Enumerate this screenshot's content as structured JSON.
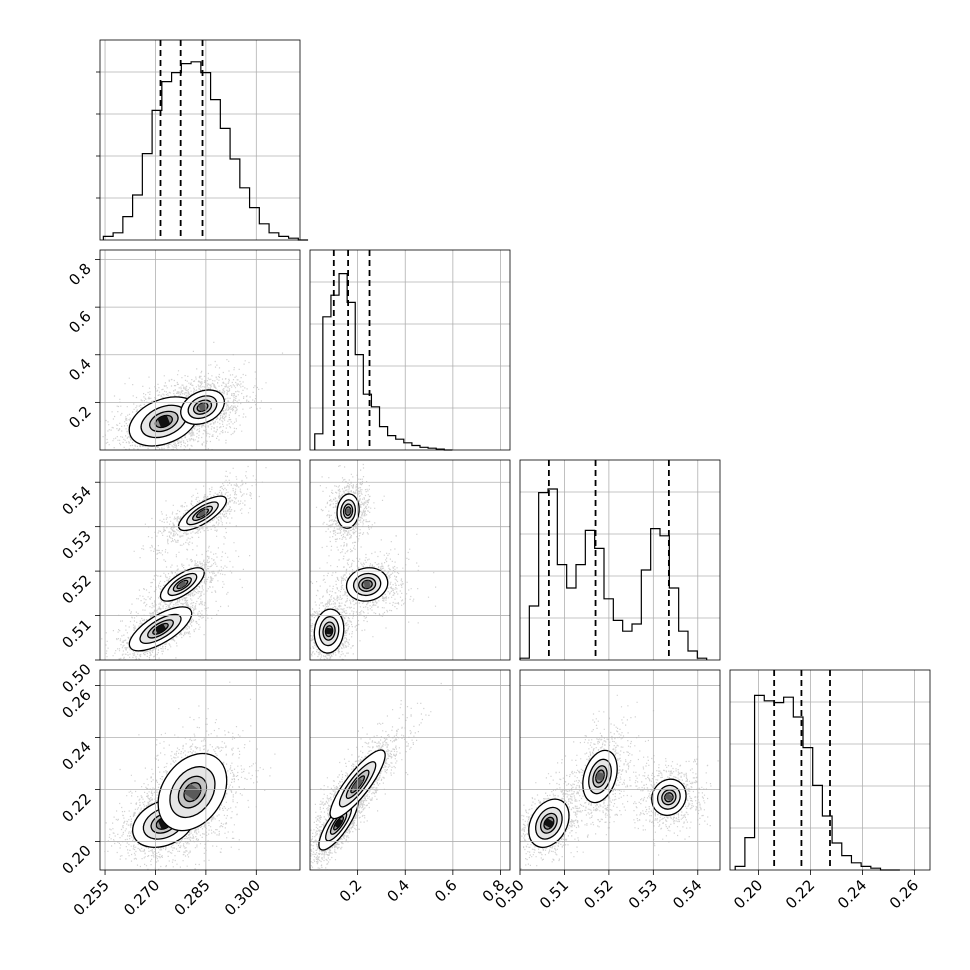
{
  "chart_data": {
    "type": "corner",
    "grid": true,
    "parameters": [
      {
        "index": 0,
        "range": [
          0.2535,
          0.313
        ],
        "ticks": [
          0.255,
          0.27,
          0.285,
          0.3
        ],
        "tick_labels": [
          "0.255",
          "0.270",
          "0.285",
          "0.300"
        ],
        "quantiles": [
          0.2715,
          0.2775,
          0.284
        ],
        "histogram": {
          "edges_start": 0.2545,
          "bin_width": 0.0029,
          "counts": [
            0.02,
            0.04,
            0.13,
            0.25,
            0.48,
            0.72,
            0.88,
            0.93,
            0.98,
            0.99,
            0.93,
            0.78,
            0.62,
            0.45,
            0.29,
            0.18,
            0.09,
            0.04,
            0.02,
            0.01,
            0.0
          ]
        }
      },
      {
        "index": 1,
        "range": [
          0.0,
          0.84
        ],
        "ticks": [
          0.2,
          0.4,
          0.6,
          0.8
        ],
        "tick_labels": [
          "0.2",
          "0.4",
          "0.6",
          "0.8"
        ],
        "left_tick_labels": [
          "0.2",
          "0.4",
          "0.6",
          "0.8"
        ],
        "quantiles": [
          0.1,
          0.16,
          0.25
        ],
        "histogram": {
          "edges_start": 0.02,
          "bin_width": 0.034,
          "counts": [
            0.09,
            0.74,
            0.86,
            0.98,
            0.82,
            0.53,
            0.31,
            0.24,
            0.13,
            0.08,
            0.06,
            0.04,
            0.025,
            0.015,
            0.01,
            0.005,
            0.0
          ]
        }
      },
      {
        "index": 2,
        "range": [
          0.5,
          0.545
        ],
        "ticks": [
          0.5,
          0.51,
          0.52,
          0.53,
          0.54
        ],
        "tick_labels": [
          "0.50",
          "0.51",
          "0.52",
          "0.53",
          "0.54"
        ],
        "left_tick_labels": [
          "0.50",
          "0.51",
          "0.52",
          "0.53",
          "0.54"
        ],
        "quantiles": [
          0.5065,
          0.517,
          0.5335
        ],
        "histogram": {
          "edges_start": 0.5,
          "bin_width": 0.0021,
          "counts": [
            0.01,
            0.3,
            0.93,
            0.95,
            0.53,
            0.4,
            0.53,
            0.72,
            0.62,
            0.34,
            0.22,
            0.16,
            0.2,
            0.5,
            0.73,
            0.69,
            0.4,
            0.16,
            0.05,
            0.01
          ]
        }
      },
      {
        "index": 3,
        "range": [
          0.189,
          0.266
        ],
        "ticks": [
          0.2,
          0.22,
          0.24,
          0.26
        ],
        "tick_labels": [
          "0.20",
          "0.22",
          "0.24",
          "0.26"
        ],
        "left_tick_labels": [
          "0.20",
          "0.22",
          "0.24",
          "0.26"
        ],
        "quantiles": [
          0.206,
          0.2165,
          0.2275
        ],
        "histogram": {
          "edges_start": 0.191,
          "bin_width": 0.00373,
          "counts": [
            0.02,
            0.18,
            0.97,
            0.94,
            0.93,
            0.96,
            0.85,
            0.68,
            0.47,
            0.3,
            0.15,
            0.08,
            0.04,
            0.02,
            0.01,
            0.0,
            0.0
          ]
        }
      }
    ],
    "pairs": [
      {
        "x": 0,
        "y": 1,
        "modes": [
          {
            "cx": 0.2725,
            "cy": 0.12,
            "sx": 0.005,
            "sy": 0.05,
            "rho": 0.35,
            "w": 1.0
          },
          {
            "cx": 0.284,
            "cy": 0.18,
            "sx": 0.0045,
            "sy": 0.05,
            "rho": 0.3,
            "w": 0.7
          }
        ]
      },
      {
        "x": 0,
        "y": 2,
        "modes": [
          {
            "cx": 0.2715,
            "cy": 0.507,
            "sx": 0.0045,
            "sy": 0.0024,
            "rho": 0.7,
            "w": 1.0
          },
          {
            "cx": 0.278,
            "cy": 0.517,
            "sx": 0.0045,
            "sy": 0.0026,
            "rho": 0.7,
            "w": 0.7
          },
          {
            "cx": 0.284,
            "cy": 0.533,
            "sx": 0.0046,
            "sy": 0.0025,
            "rho": 0.75,
            "w": 0.75
          }
        ]
      },
      {
        "x": 1,
        "y": 2,
        "modes": [
          {
            "cx": 0.08,
            "cy": 0.5065,
            "sx": 0.03,
            "sy": 0.0024,
            "rho": 0.1,
            "w": 1.0
          },
          {
            "cx": 0.24,
            "cy": 0.517,
            "sx": 0.06,
            "sy": 0.0026,
            "rho": 0.1,
            "w": 0.7
          },
          {
            "cx": 0.16,
            "cy": 0.5335,
            "sx": 0.03,
            "sy": 0.0025,
            "rho": 0.1,
            "w": 0.75
          }
        ]
      },
      {
        "x": 0,
        "y": 3,
        "modes": [
          {
            "cx": 0.2725,
            "cy": 0.207,
            "sx": 0.0045,
            "sy": 0.0045,
            "rho": 0.3,
            "w": 1.0
          },
          {
            "cx": 0.281,
            "cy": 0.219,
            "sx": 0.0055,
            "sy": 0.008,
            "rho": 0.3,
            "w": 0.9
          }
        ]
      },
      {
        "x": 1,
        "y": 3,
        "modes": [
          {
            "cx": 0.12,
            "cy": 0.207,
            "sx": 0.04,
            "sy": 0.005,
            "rho": 0.8,
            "w": 1.0
          },
          {
            "cx": 0.2,
            "cy": 0.222,
            "sx": 0.07,
            "sy": 0.008,
            "rho": 0.85,
            "w": 0.8
          }
        ]
      },
      {
        "x": 2,
        "y": 3,
        "modes": [
          {
            "cx": 0.5065,
            "cy": 0.207,
            "sx": 0.0022,
            "sy": 0.0045,
            "rho": 0.3,
            "w": 1.0
          },
          {
            "cx": 0.518,
            "cy": 0.225,
            "sx": 0.0025,
            "sy": 0.0065,
            "rho": 0.3,
            "w": 0.75
          },
          {
            "cx": 0.5335,
            "cy": 0.217,
            "sx": 0.0025,
            "sy": 0.0045,
            "rho": 0.1,
            "w": 0.75
          }
        ]
      }
    ]
  }
}
